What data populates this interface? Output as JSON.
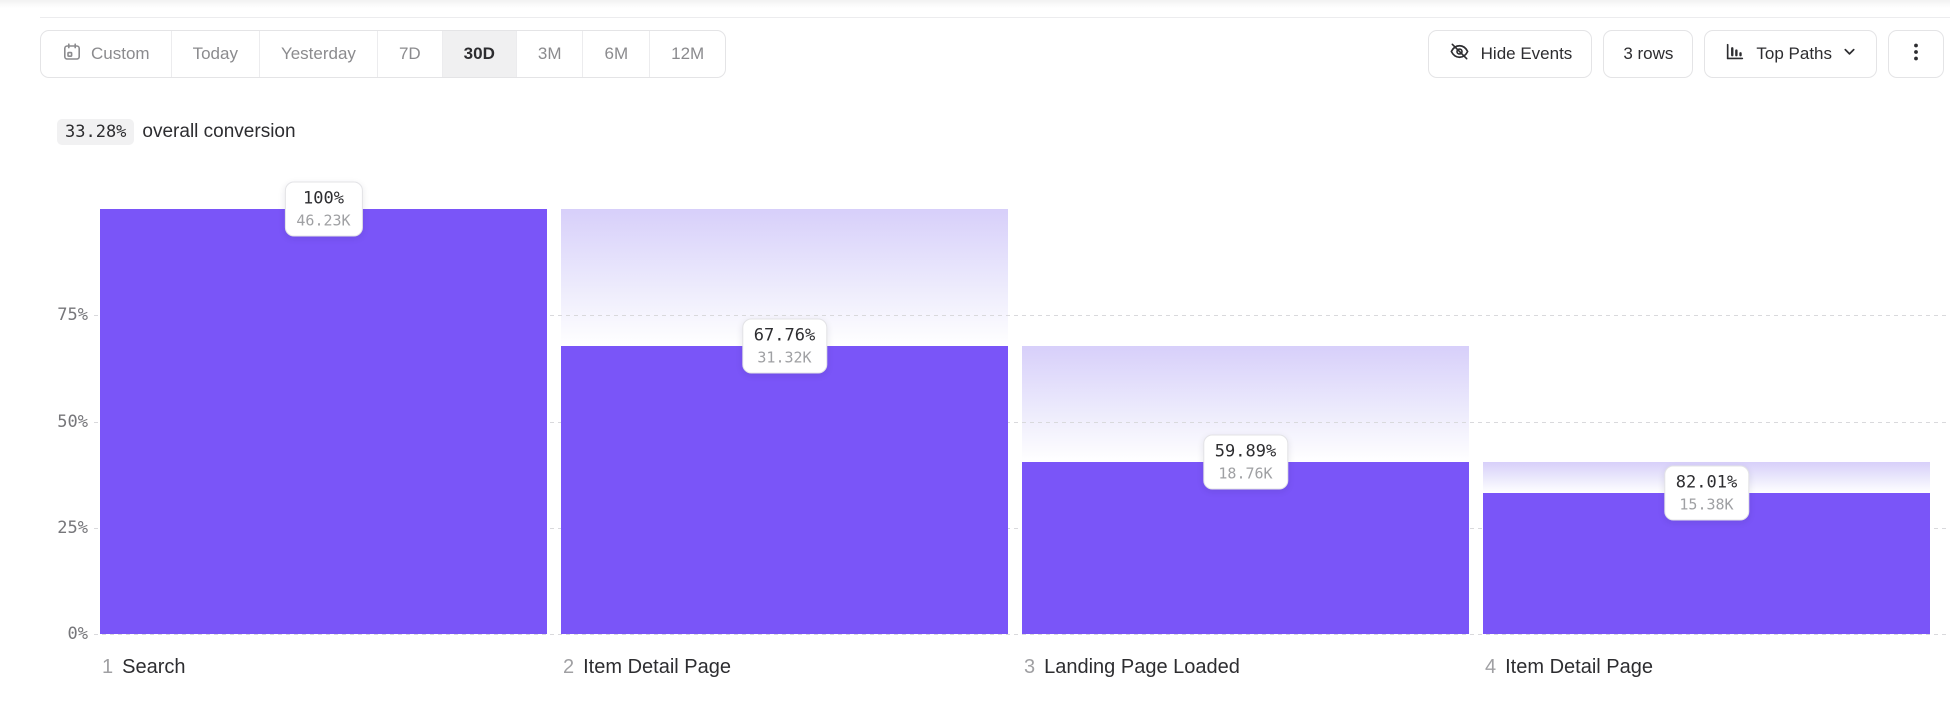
{
  "toolbar": {
    "date_range_options": [
      {
        "label": "Custom",
        "selected": false,
        "icon": "calendar"
      },
      {
        "label": "Today",
        "selected": false
      },
      {
        "label": "Yesterday",
        "selected": false
      },
      {
        "label": "7D",
        "selected": false
      },
      {
        "label": "30D",
        "selected": true
      },
      {
        "label": "3M",
        "selected": false
      },
      {
        "label": "6M",
        "selected": false
      },
      {
        "label": "12M",
        "selected": false
      }
    ],
    "hide_events_label": "Hide Events",
    "rows_label": "3 rows",
    "top_paths_label": "Top Paths"
  },
  "summary": {
    "value": "33.28%",
    "text": "overall conversion"
  },
  "chart_data": {
    "type": "bar",
    "subtype": "funnel",
    "title": "33.28% overall conversion",
    "grid": true,
    "ylim": [
      0,
      100
    ],
    "yaxis": {
      "ticks": [
        {
          "value": 0,
          "label": "0%"
        },
        {
          "value": 25,
          "label": "25%"
        },
        {
          "value": 50,
          "label": "50%"
        },
        {
          "value": 75,
          "label": "75%"
        }
      ]
    },
    "steps": [
      {
        "index": "1",
        "label": "Search",
        "conversion_label": "100%",
        "count_label": "46.23K",
        "overall_pct": 100
      },
      {
        "index": "2",
        "label": "Item Detail Page",
        "conversion_label": "67.76%",
        "count_label": "31.32K",
        "overall_pct": 67.75
      },
      {
        "index": "3",
        "label": "Landing Page Loaded",
        "conversion_label": "59.89%",
        "count_label": "18.76K",
        "overall_pct": 40.58
      },
      {
        "index": "4",
        "label": "Item Detail Page",
        "conversion_label": "82.01%",
        "count_label": "15.38K",
        "overall_pct": 33.27
      }
    ],
    "colors": {
      "bar": "#7a55f8",
      "ghost_top": "#d7cffa",
      "gridline": "#d9d9dc"
    }
  }
}
